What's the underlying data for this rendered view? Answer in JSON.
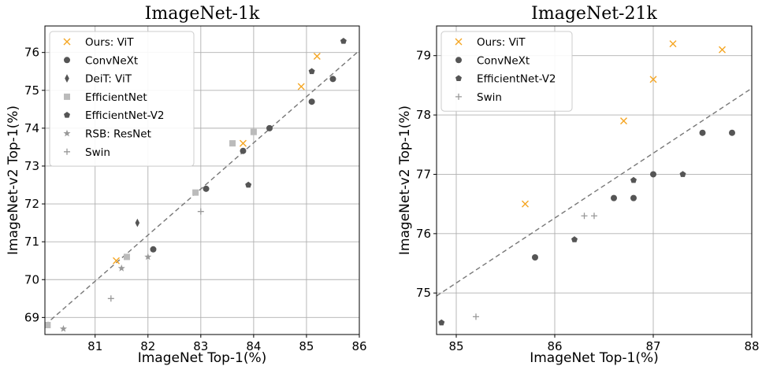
{
  "chart_data": [
    {
      "type": "scatter",
      "title": "ImageNet-1k",
      "xlabel": "ImageNet Top-1(%)",
      "ylabel": "ImageNet-v2 Top-1(%)",
      "xlim": [
        80.05,
        86.0
      ],
      "ylim": [
        68.55,
        76.7
      ],
      "xticks": [
        81,
        82,
        83,
        84,
        85,
        86
      ],
      "yticks": [
        69,
        70,
        71,
        72,
        73,
        74,
        75,
        76
      ],
      "grid": true,
      "legend_position": "top-left",
      "reference_line": {
        "style": "dashed",
        "color": "#777777",
        "points": [
          [
            80.05,
            68.8
          ],
          [
            86.0,
            76.05
          ]
        ]
      },
      "series": [
        {
          "name": "Ours: ViT",
          "marker": "x",
          "color": "#f5a623",
          "points": [
            [
              81.4,
              70.5
            ],
            [
              83.8,
              73.6
            ],
            [
              84.9,
              75.1
            ],
            [
              85.2,
              75.9
            ]
          ]
        },
        {
          "name": "ConvNeXt",
          "marker": "circle",
          "color": "#555555",
          "points": [
            [
              82.1,
              70.8
            ],
            [
              83.1,
              72.4
            ],
            [
              83.8,
              73.4
            ],
            [
              84.3,
              74.0
            ],
            [
              85.1,
              74.7
            ],
            [
              85.5,
              75.3
            ]
          ]
        },
        {
          "name": "DeiT: ViT",
          "marker": "diamond",
          "color": "#555555",
          "points": [
            [
              81.8,
              71.5
            ]
          ]
        },
        {
          "name": "EfficientNet",
          "marker": "square",
          "color": "#bbbbbb",
          "points": [
            [
              80.1,
              68.8
            ],
            [
              81.6,
              70.6
            ],
            [
              82.9,
              72.3
            ],
            [
              83.6,
              73.6
            ],
            [
              84.0,
              73.9
            ]
          ]
        },
        {
          "name": "EfficientNet-V2",
          "marker": "pentagon",
          "color": "#555555",
          "points": [
            [
              83.9,
              72.5
            ],
            [
              85.1,
              75.5
            ],
            [
              85.7,
              76.3
            ]
          ]
        },
        {
          "name": "RSB: ResNet",
          "marker": "star",
          "color": "#999999",
          "points": [
            [
              80.4,
              68.7
            ],
            [
              81.5,
              70.3
            ],
            [
              82.0,
              70.6
            ]
          ]
        },
        {
          "name": "Swin",
          "marker": "plus",
          "color": "#999999",
          "points": [
            [
              81.3,
              69.5
            ],
            [
              83.0,
              71.8
            ]
          ]
        }
      ]
    },
    {
      "type": "scatter",
      "title": "ImageNet-21k",
      "xlabel": "ImageNet Top-1(%)",
      "ylabel": "ImageNet-v2 Top-1(%)",
      "xlim": [
        84.8,
        88.0
      ],
      "ylim": [
        74.3,
        79.5
      ],
      "xticks": [
        85,
        86,
        87,
        88
      ],
      "yticks": [
        75,
        76,
        77,
        78,
        79
      ],
      "grid": true,
      "legend_position": "top-left",
      "reference_line": {
        "style": "dashed",
        "color": "#777777",
        "points": [
          [
            84.8,
            74.95
          ],
          [
            88.0,
            78.45
          ]
        ]
      },
      "series": [
        {
          "name": "Ours: ViT",
          "marker": "x",
          "color": "#f5a623",
          "points": [
            [
              85.7,
              76.5
            ],
            [
              86.7,
              77.9
            ],
            [
              87.0,
              78.6
            ],
            [
              87.2,
              79.2
            ],
            [
              87.7,
              79.1
            ]
          ]
        },
        {
          "name": "ConvNeXt",
          "marker": "circle",
          "color": "#555555",
          "points": [
            [
              85.8,
              75.6
            ],
            [
              86.6,
              76.6
            ],
            [
              86.8,
              76.6
            ],
            [
              87.0,
              77.0
            ],
            [
              87.5,
              77.7
            ],
            [
              87.8,
              77.7
            ]
          ]
        },
        {
          "name": "EfficientNet-V2",
          "marker": "pentagon",
          "color": "#555555",
          "points": [
            [
              84.85,
              74.5
            ],
            [
              86.2,
              75.9
            ],
            [
              86.8,
              76.9
            ],
            [
              87.3,
              77.0
            ]
          ]
        },
        {
          "name": "Swin",
          "marker": "plus",
          "color": "#999999",
          "points": [
            [
              85.2,
              74.6
            ],
            [
              86.3,
              76.3
            ],
            [
              86.4,
              76.3
            ]
          ]
        }
      ]
    }
  ]
}
